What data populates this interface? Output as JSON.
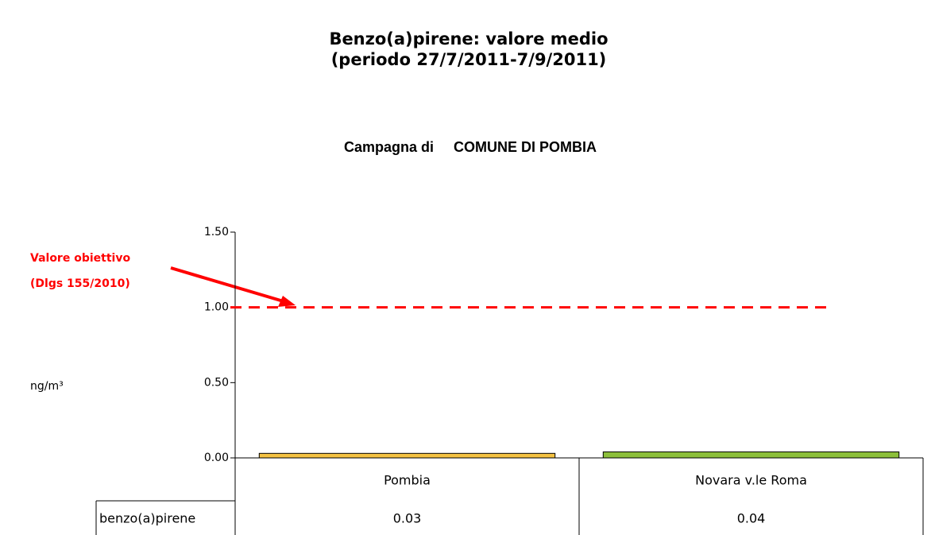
{
  "chart_data": {
    "type": "bar",
    "title": [
      "Benzo(a)pirene: valore medio",
      "(periodo 27/7/2011-7/9/2011)"
    ],
    "subtitle": "Campagna di     COMUNE DI POMBIA",
    "y_label": "ng/m³",
    "categories": [
      "Pombia",
      "Novara v.le Roma"
    ],
    "series": [
      {
        "name": "benzo(a)pirene",
        "colors": [
          "#f5c242",
          "#8cbf3a"
        ],
        "values": [
          0.03,
          0.04
        ]
      }
    ],
    "ylim": [
      0,
      1.5
    ],
    "yticks": [
      {
        "value": 0,
        "label": "0.00"
      },
      {
        "value": 0.5,
        "label": "0.50"
      },
      {
        "value": 1,
        "label": "1.00"
      },
      {
        "value": 1.5,
        "label": "1.50"
      }
    ],
    "reference_line": {
      "value": 1,
      "color": "#ff0000",
      "label": [
        "Valore obiettivo",
        "(Dlgs 155/2010)"
      ]
    },
    "data_table": true
  }
}
